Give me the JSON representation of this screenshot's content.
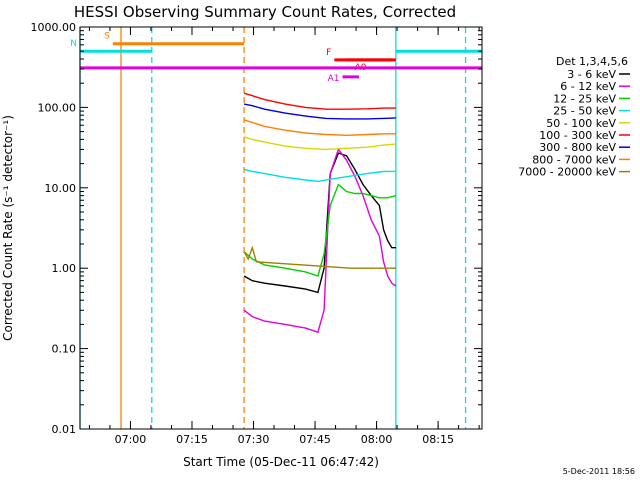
{
  "chart_data": {
    "type": "line",
    "title": "HESSI Observing Summary Count Rates, Corrected",
    "xlabel": "Start Time (05-Dec-11 06:47:42)",
    "ylabel": "Corrected Count Rate (s⁻¹ detector⁻¹)",
    "y_scale": "log",
    "ylim": [
      0.01,
      1000
    ],
    "xlim_minutes_after_start": [
      0,
      98
    ],
    "x_ticks": [
      {
        "label": "07:00",
        "value": 12.3
      },
      {
        "label": "07:15",
        "value": 27.3
      },
      {
        "label": "07:30",
        "value": 42.3
      },
      {
        "label": "07:45",
        "value": 57.3
      },
      {
        "label": "08:00",
        "value": 72.3
      },
      {
        "label": "08:15",
        "value": 87.3
      }
    ],
    "y_ticks": [
      {
        "label": "0.01",
        "value": 0.01
      },
      {
        "label": "0.10",
        "value": 0.1
      },
      {
        "label": "1.00",
        "value": 1
      },
      {
        "label": "10.00",
        "value": 10
      },
      {
        "label": "100.00",
        "value": 100
      },
      {
        "label": "1000.00",
        "value": 1000
      }
    ],
    "legend_title": "Det 1,3,4,5,6",
    "legend_position": "right",
    "series": [
      {
        "name": "3 - 6 keV",
        "color": "#000000",
        "x": [
          40,
          42,
          45,
          50,
          55,
          58,
          59.5,
          61,
          63,
          65,
          67,
          69,
          71,
          73,
          74,
          75,
          76,
          77
        ],
        "y": [
          0.8,
          0.7,
          0.65,
          0.6,
          0.55,
          0.5,
          1.0,
          15,
          27,
          25,
          17,
          11,
          8,
          6,
          3,
          2.2,
          1.8,
          1.8
        ]
      },
      {
        "name": "6 - 12 keV",
        "color": "#e000e0",
        "x": [
          40,
          42,
          45,
          50,
          55,
          58,
          59.5,
          61,
          63,
          65,
          67,
          69,
          71,
          73,
          74,
          75,
          76,
          77
        ],
        "y": [
          0.3,
          0.25,
          0.22,
          0.2,
          0.18,
          0.16,
          0.3,
          15,
          30,
          22,
          14,
          8,
          4,
          2.5,
          1.2,
          0.8,
          0.65,
          0.6
        ]
      },
      {
        "name": "12 - 25 keV",
        "color": "#00d000",
        "x": [
          40,
          42,
          45,
          50,
          55,
          58,
          59.5,
          61,
          63,
          65,
          67,
          69,
          71,
          73,
          75,
          77
        ],
        "y": [
          1.6,
          1.3,
          1.1,
          1.0,
          0.9,
          0.8,
          1.5,
          6,
          11,
          9,
          8.5,
          8.5,
          8,
          7.5,
          7.5,
          8
        ]
      },
      {
        "name": "25 - 50 keV",
        "color": "#00e0e0",
        "x": [
          40,
          42,
          45,
          50,
          55,
          58,
          62,
          66,
          70,
          74,
          77
        ],
        "y": [
          17,
          16,
          15,
          13.5,
          12.5,
          12,
          13,
          14,
          15,
          16,
          16
        ]
      },
      {
        "name": "50 - 100 keV",
        "color": "#d8d800",
        "x": [
          40,
          42,
          45,
          50,
          55,
          60,
          65,
          70,
          74,
          77
        ],
        "y": [
          43,
          40,
          37,
          33,
          31,
          30,
          31,
          32,
          34,
          35
        ]
      },
      {
        "name": "100 - 300 keV",
        "color": "#ff0000",
        "x": [
          40,
          42,
          45,
          50,
          55,
          60,
          65,
          70,
          74,
          77
        ],
        "y": [
          150,
          140,
          125,
          110,
          100,
          95,
          95,
          96,
          98,
          98
        ]
      },
      {
        "name": "300 - 800 keV",
        "color": "#0000e0",
        "x": [
          40,
          42,
          45,
          50,
          55,
          60,
          65,
          70,
          74,
          77
        ],
        "y": [
          110,
          105,
          95,
          85,
          78,
          73,
          72,
          72,
          73,
          74
        ]
      },
      {
        "name": "800 - 7000 keV",
        "color": "#ff8000",
        "x": [
          40,
          42,
          45,
          50,
          55,
          60,
          65,
          70,
          74,
          77
        ],
        "y": [
          70,
          65,
          58,
          52,
          48,
          46,
          45,
          46,
          47,
          47
        ]
      },
      {
        "name": "7000 - 20000 keV",
        "color": "#a08000",
        "x": [
          40,
          41,
          42,
          43,
          66,
          70,
          74,
          77
        ],
        "y": [
          1.6,
          1.3,
          1.8,
          1.2,
          1.0,
          1.0,
          1.0,
          1.0
        ]
      }
    ],
    "flags": [
      {
        "label": "S",
        "color": "#ff8000",
        "x_start": 8,
        "x_end": 40,
        "y": 620
      },
      {
        "label": "N",
        "color": "#00e0e0",
        "x_start": 0,
        "x_end": 17.5,
        "y": 500
      },
      {
        "label": "",
        "color": "#00e0e0",
        "x_start": 77,
        "x_end": 98,
        "y": 500
      },
      {
        "label": "F",
        "color": "#ff0000",
        "x_start": 62,
        "x_end": 77,
        "y": 390
      },
      {
        "label": "A0",
        "color": "#ff0000",
        "x_start": 65,
        "x_end": 76,
        "y": 390
      },
      {
        "label": "A1",
        "color": "#e000e0",
        "x_start": 64,
        "x_end": 68,
        "y": 240
      },
      {
        "label": "",
        "color": "#e000e0",
        "x_start": 0,
        "x_end": 98,
        "y": 310
      }
    ],
    "vertical_markers": [
      {
        "x": 10,
        "color": "#ff8000",
        "style": "solid"
      },
      {
        "x": 17.5,
        "color": "#00e0e0",
        "style": "dashed"
      },
      {
        "x": 40,
        "color": "#ff8000",
        "style": "dashed"
      },
      {
        "x": 77,
        "color": "#00e0e0",
        "style": "solid"
      },
      {
        "x": 94,
        "color": "#00e0e0",
        "style": "dashed"
      },
      {
        "x": 0,
        "color": "#00e0e0",
        "style": "solid"
      }
    ],
    "footer": "5-Dec-2011 18:56"
  }
}
